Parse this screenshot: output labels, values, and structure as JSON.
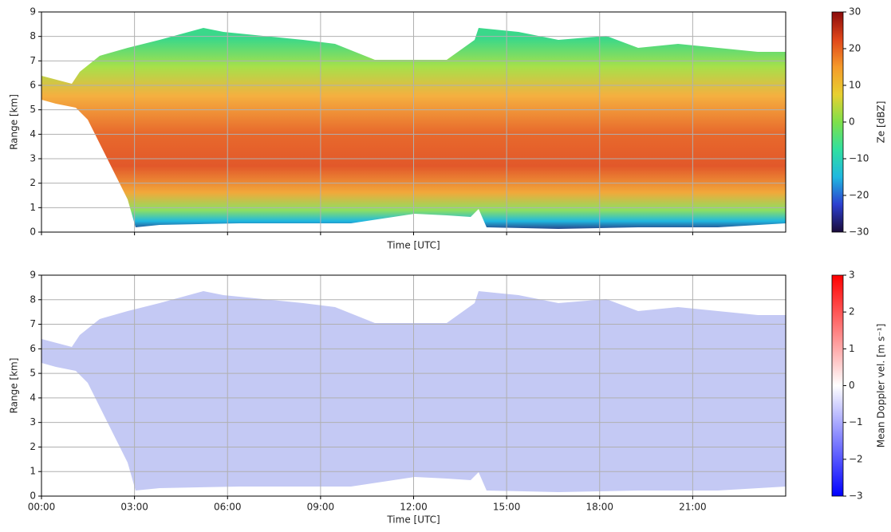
{
  "chart_data": [
    {
      "type": "heatmap",
      "ylabel": "Range [km]",
      "xlabel": "Time [UTC]",
      "xlim": [
        0,
        24
      ],
      "xticks": [
        0,
        3,
        6,
        9,
        12,
        15,
        18,
        21
      ],
      "ylim": [
        0,
        9
      ],
      "yticks": [
        0,
        1,
        2,
        3,
        4,
        5,
        6,
        7,
        8,
        9
      ],
      "grid": true,
      "colorbar": {
        "label": "Ze [dBZ]",
        "lim": [
          -30,
          30
        ],
        "ticks": [
          {
            "value": -30,
            "label": "−30"
          },
          {
            "value": -20,
            "label": "−20"
          },
          {
            "value": -10,
            "label": "−10"
          },
          0,
          10,
          20,
          30
        ],
        "colors": [
          "#1a0b3a",
          "#2c3fd0",
          "#1fb8e0",
          "#30e0a0",
          "#7ee04a",
          "#e8d030",
          "#f59a2a",
          "#e0461a",
          "#8a0a0a"
        ]
      }
    },
    {
      "type": "heatmap",
      "ylabel": "Range [km]",
      "xlabel": "Time [UTC]",
      "xlim": [
        0,
        24
      ],
      "xticks": [
        {
          "value": 0,
          "label": "00:00"
        },
        {
          "value": 3,
          "label": "03:00"
        },
        {
          "value": 6,
          "label": "06:00"
        },
        {
          "value": 9,
          "label": "09:00"
        },
        {
          "value": 12,
          "label": "12:00"
        },
        {
          "value": 15,
          "label": "15:00"
        },
        {
          "value": 18,
          "label": "18:00"
        },
        {
          "value": 21,
          "label": "21:00"
        }
      ],
      "ylim": [
        0,
        9
      ],
      "yticks": [
        0,
        1,
        2,
        3,
        4,
        5,
        6,
        7,
        8,
        9
      ],
      "grid": true,
      "colorbar": {
        "label": "Mean Doppler vel. [m s⁻¹]",
        "lim": [
          -3,
          3
        ],
        "ticks": [
          {
            "value": -3,
            "label": "−3"
          },
          {
            "value": -2,
            "label": "−2"
          },
          {
            "value": -1,
            "label": "−1"
          },
          0,
          1,
          2,
          3
        ],
        "colors": [
          "#0000ff",
          "#ffffff",
          "#ff0000"
        ]
      }
    }
  ]
}
